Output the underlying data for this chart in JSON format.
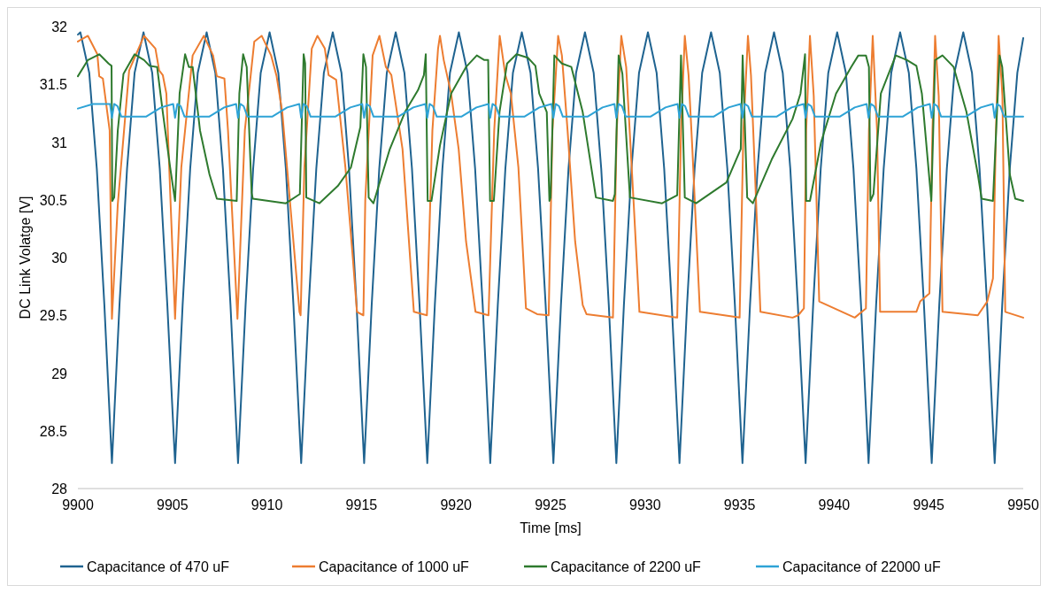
{
  "chart_data": {
    "type": "line",
    "xlabel": "Time [ms]",
    "ylabel": "DC Link Volatge [V]",
    "xlim": [
      9900,
      9950
    ],
    "ylim": [
      28,
      32
    ],
    "xticks": [
      9900,
      9905,
      9910,
      9915,
      9920,
      9925,
      9930,
      9935,
      9940,
      9945,
      9950
    ],
    "yticks": [
      28,
      {
        "value": 28.5,
        "label": "28.5"
      },
      29,
      {
        "value": 29.5,
        "label": "29.5"
      },
      30,
      {
        "value": 30.5,
        "label": "30.5"
      },
      31,
      {
        "value": 31.5,
        "label": "31.5"
      },
      32
    ],
    "legend": "bottom",
    "grid": false,
    "series": [
      {
        "name": "Capacitance of 470 uF",
        "color": "#1f6390",
        "x": [
          9900.0,
          9900.13,
          9900.6,
          9901.0,
          9901.4,
          9901.8,
          9902.2,
          9902.6,
          9903.0,
          9903.47,
          9903.93,
          9904.33,
          9904.73,
          9905.14,
          9905.54,
          9905.94,
          9906.34,
          9906.81,
          9907.27,
          9907.67,
          9908.07,
          9908.47,
          9908.87,
          9909.27,
          9909.67,
          9910.14,
          9910.6,
          9911.0,
          9911.4,
          9911.81,
          9912.21,
          9912.61,
          9913.01,
          9913.48,
          9913.94,
          9914.34,
          9914.74,
          9915.14,
          9915.54,
          9915.94,
          9916.34,
          9916.81,
          9917.27,
          9917.67,
          9918.07,
          9918.48,
          9918.88,
          9919.28,
          9919.68,
          9920.15,
          9920.61,
          9921.01,
          9921.41,
          9921.81,
          9922.21,
          9922.61,
          9923.01,
          9923.48,
          9923.94,
          9924.34,
          9924.74,
          9925.15,
          9925.55,
          9925.95,
          9926.35,
          9926.82,
          9927.28,
          9927.68,
          9928.08,
          9928.48,
          9928.88,
          9929.28,
          9929.68,
          9930.15,
          9930.61,
          9931.01,
          9931.41,
          9931.82,
          9932.22,
          9932.62,
          9933.02,
          9933.49,
          9933.95,
          9934.35,
          9934.75,
          9935.15,
          9935.55,
          9935.95,
          9936.35,
          9936.82,
          9937.28,
          9937.68,
          9938.08,
          9938.49,
          9938.89,
          9939.29,
          9939.69,
          9940.16,
          9940.62,
          9941.02,
          9941.42,
          9941.82,
          9942.22,
          9942.62,
          9943.02,
          9943.49,
          9943.95,
          9944.35,
          9944.75,
          9945.16,
          9945.56,
          9945.96,
          9946.36,
          9946.83,
          9947.29,
          9947.69,
          9948.09,
          9948.49,
          9948.89,
          9949.29,
          9949.69,
          9950.0
        ],
        "values": [
          31.93,
          31.95,
          31.6,
          30.77,
          29.59,
          28.22,
          29.59,
          30.77,
          31.6,
          31.95,
          31.6,
          30.77,
          29.59,
          28.22,
          29.59,
          30.77,
          31.6,
          31.95,
          31.6,
          30.77,
          29.59,
          28.22,
          29.59,
          30.77,
          31.6,
          31.95,
          31.6,
          30.77,
          29.59,
          28.22,
          29.59,
          30.77,
          31.6,
          31.95,
          31.6,
          30.77,
          29.59,
          28.22,
          29.59,
          30.77,
          31.6,
          31.95,
          31.6,
          30.77,
          29.59,
          28.22,
          29.59,
          30.77,
          31.6,
          31.95,
          31.6,
          30.77,
          29.59,
          28.22,
          29.59,
          30.77,
          31.6,
          31.95,
          31.6,
          30.77,
          29.59,
          28.22,
          29.59,
          30.77,
          31.6,
          31.95,
          31.6,
          30.77,
          29.59,
          28.22,
          29.59,
          30.77,
          31.6,
          31.95,
          31.6,
          30.77,
          29.59,
          28.22,
          29.59,
          30.77,
          31.6,
          31.95,
          31.6,
          30.77,
          29.59,
          28.22,
          29.59,
          30.77,
          31.6,
          31.95,
          31.6,
          30.77,
          29.59,
          28.22,
          29.59,
          30.77,
          31.6,
          31.95,
          31.6,
          30.77,
          29.59,
          28.22,
          29.59,
          30.77,
          31.6,
          31.95,
          31.6,
          30.77,
          29.59,
          28.22,
          29.59,
          30.77,
          31.6,
          31.95,
          31.6,
          30.77,
          29.59,
          28.22,
          29.59,
          30.77,
          31.6,
          31.9
        ]
      },
      {
        "name": "Capacitance of 1000 uF",
        "color": "#ed7d31",
        "x": [
          9900.0,
          9900.53,
          9901.03,
          9901.13,
          9901.32,
          9901.68,
          9901.8,
          9902.11,
          9902.71,
          9903.5,
          9904.1,
          9904.3,
          9904.49,
          9904.68,
          9905.14,
          9905.47,
          9906.07,
          9906.66,
          9907.15,
          9907.35,
          9907.75,
          9907.94,
          9908.44,
          9908.83,
          9909.33,
          9909.72,
          9910.22,
          9910.51,
          9910.81,
          9911.72,
          9911.78,
          9911.98,
          9912.37,
          9912.67,
          9913.06,
          9913.26,
          9913.66,
          9914.15,
          9914.55,
          9914.76,
          9915.1,
          9915.2,
          9915.59,
          9915.95,
          9916.29,
          9916.58,
          9917.17,
          9917.77,
          9918.46,
          9918.75,
          9919.05,
          9919.15,
          9919.35,
          9919.74,
          9920.14,
          9920.53,
          9921.03,
          9921.72,
          9922.02,
          9922.31,
          9922.61,
          9922.9,
          9923.3,
          9923.7,
          9924.29,
          9924.9,
          9925.1,
          9925.4,
          9925.6,
          9925.9,
          9926.3,
          9926.7,
          9926.9,
          9928.3,
          9928.5,
          9928.74,
          9929.0,
          9929.4,
          9929.7,
          9931.7,
          9931.9,
          9932.1,
          9932.3,
          9932.5,
          9932.9,
          9935.0,
          9935.2,
          9935.44,
          9935.6,
          9935.8,
          9936.1,
          9937.8,
          9938.1,
          9938.4,
          9938.52,
          9938.72,
          9938.92,
          9939.21,
          9941.09,
          9941.68,
          9941.84,
          9942.04,
          9942.27,
          9942.43,
          9944.35,
          9944.55,
          9945.04,
          9945.2,
          9945.34,
          9945.53,
          9945.73,
          9947.6,
          9948.1,
          9948.4,
          9948.56,
          9948.7,
          9948.9,
          9949.05,
          9950.0
        ],
        "values": [
          31.87,
          31.92,
          31.76,
          31.57,
          31.55,
          31.1,
          29.47,
          30.46,
          31.62,
          31.92,
          31.81,
          31.62,
          31.58,
          31.42,
          29.47,
          30.78,
          31.75,
          31.92,
          31.75,
          31.57,
          31.55,
          31.1,
          29.47,
          31.1,
          31.87,
          31.92,
          31.75,
          31.57,
          31.26,
          29.53,
          29.5,
          30.78,
          31.81,
          31.92,
          31.81,
          31.58,
          31.54,
          30.78,
          29.98,
          29.53,
          29.5,
          30.5,
          31.75,
          31.92,
          31.65,
          31.58,
          30.94,
          29.53,
          29.5,
          31.1,
          31.81,
          31.92,
          31.71,
          31.42,
          30.94,
          30.14,
          29.53,
          29.5,
          31.1,
          31.92,
          31.58,
          31.42,
          30.78,
          29.56,
          29.51,
          29.5,
          31.1,
          31.92,
          31.75,
          31.1,
          30.14,
          29.59,
          29.51,
          29.48,
          31.1,
          31.92,
          31.65,
          30.46,
          29.53,
          29.48,
          31.1,
          31.92,
          31.58,
          30.94,
          29.53,
          29.48,
          31.1,
          31.92,
          31.58,
          30.78,
          29.53,
          29.48,
          29.5,
          29.56,
          31.1,
          31.92,
          31.4,
          29.62,
          29.48,
          29.56,
          31.1,
          31.92,
          31.1,
          29.53,
          29.53,
          29.62,
          29.69,
          31.1,
          31.92,
          31.4,
          29.53,
          29.5,
          29.62,
          29.82,
          31.1,
          31.92,
          31.4,
          29.53,
          29.48
        ]
      },
      {
        "name": "Capacitance of 2200 uF",
        "color": "#2e7a2e",
        "x": [
          9900.0,
          9900.53,
          9901.13,
          9901.62,
          9901.78,
          9901.82,
          9901.92,
          9902.11,
          9902.41,
          9903.0,
          9903.5,
          9903.79,
          9904.19,
          9904.49,
          9904.88,
          9905.14,
          9905.38,
          9905.67,
          9905.87,
          9906.07,
          9906.46,
          9906.96,
          9907.35,
          9908.4,
          9908.54,
          9908.74,
          9908.93,
          9909.19,
          9909.25,
          9911.0,
          9911.74,
          9911.94,
          9912.02,
          9912.08,
          9912.77,
          9913.75,
          9914.44,
          9914.94,
          9915.1,
          9915.24,
          9915.38,
          9915.63,
          9916.5,
          9917.3,
          9917.99,
          9918.3,
          9918.4,
          9918.5,
          9918.7,
          9919.15,
          9919.74,
          9920.53,
          9921.1,
          9921.5,
          9921.7,
          9921.8,
          9922.0,
          9922.3,
          9922.7,
          9923.2,
          9923.8,
          9924.2,
          9924.4,
          9924.8,
          9924.94,
          9925.0,
          9925.2,
          9925.6,
          9926.1,
          9926.7,
          9927.4,
          9928.3,
          9928.4,
          9928.6,
          9928.8,
          9929.2,
          9930.9,
          9931.7,
          9931.9,
          9932.1,
          9932.7,
          9933.5,
          9934.3,
          9935.06,
          9935.16,
          9935.4,
          9935.7,
          9936.7,
          9937.8,
          9938.22,
          9938.46,
          9938.52,
          9938.72,
          9939.31,
          9940.1,
          9940.9,
          9941.28,
          9941.68,
          9941.84,
          9941.92,
          9942.08,
          9942.47,
          9943.26,
          9943.85,
          9944.35,
          9944.64,
          9945.14,
          9945.34,
          9945.73,
          9946.32,
          9947.0,
          9947.6,
          9947.8,
          9948.4,
          9948.75,
          9948.89,
          9949.29,
          9949.58,
          9950.0
        ],
        "values": [
          31.57,
          31.71,
          31.76,
          31.68,
          31.66,
          30.49,
          30.52,
          31.1,
          31.59,
          31.76,
          31.71,
          31.66,
          31.65,
          31.26,
          30.78,
          30.49,
          31.42,
          31.76,
          31.65,
          31.65,
          31.1,
          30.72,
          30.51,
          30.49,
          31.42,
          31.76,
          31.65,
          30.56,
          30.51,
          30.47,
          30.55,
          31.76,
          31.68,
          30.52,
          30.47,
          30.62,
          30.78,
          31.13,
          31.76,
          31.65,
          30.52,
          30.47,
          30.94,
          31.26,
          31.45,
          31.58,
          31.76,
          30.49,
          30.49,
          30.97,
          31.42,
          31.65,
          31.75,
          31.71,
          31.71,
          30.49,
          30.49,
          31.26,
          31.68,
          31.76,
          31.73,
          31.66,
          31.42,
          31.26,
          30.49,
          30.52,
          31.75,
          31.68,
          31.65,
          31.26,
          30.52,
          30.49,
          30.55,
          31.75,
          31.59,
          30.52,
          30.47,
          30.54,
          31.75,
          30.52,
          30.47,
          30.56,
          30.65,
          30.94,
          31.75,
          30.52,
          30.47,
          30.85,
          31.2,
          31.42,
          31.76,
          30.49,
          30.49,
          31.0,
          31.42,
          31.65,
          31.75,
          31.75,
          31.65,
          30.49,
          30.55,
          31.42,
          31.75,
          31.71,
          31.66,
          31.42,
          30.49,
          31.71,
          31.75,
          31.65,
          31.26,
          30.72,
          30.51,
          30.49,
          31.75,
          31.65,
          30.72,
          30.51,
          30.49
        ]
      },
      {
        "name": "Capacitance of 22000 uF",
        "color": "#2ea3d6",
        "x": [
          9900.0,
          9900.8,
          9901.7,
          9901.8,
          9901.92,
          9902.1,
          9902.3,
          9903.6,
          9904.4,
          9905.04,
          9905.14,
          9905.26,
          9905.44,
          9905.64,
          9906.94,
          9907.74,
          9908.37,
          9908.47,
          9908.59,
          9908.77,
          9908.97,
          9910.27,
          9911.07,
          9911.71,
          9911.81,
          9911.93,
          9912.11,
          9912.31,
          9913.61,
          9914.41,
          9915.04,
          9915.14,
          9915.26,
          9915.44,
          9915.64,
          9916.94,
          9917.74,
          9918.38,
          9918.48,
          9918.6,
          9918.78,
          9918.98,
          9920.28,
          9921.08,
          9921.71,
          9921.81,
          9921.93,
          9922.11,
          9922.31,
          9923.61,
          9924.41,
          9925.05,
          9925.15,
          9925.27,
          9925.45,
          9925.65,
          9926.95,
          9927.75,
          9928.38,
          9928.48,
          9928.6,
          9928.78,
          9928.98,
          9930.28,
          9931.08,
          9931.72,
          9931.82,
          9931.94,
          9932.12,
          9932.32,
          9933.62,
          9934.42,
          9935.05,
          9935.15,
          9935.27,
          9935.45,
          9935.65,
          9936.95,
          9937.75,
          9938.39,
          9938.49,
          9938.61,
          9938.79,
          9938.99,
          9940.29,
          9941.09,
          9941.72,
          9941.82,
          9941.94,
          9942.12,
          9942.32,
          9943.62,
          9944.42,
          9945.06,
          9945.16,
          9945.28,
          9945.46,
          9945.66,
          9946.96,
          9947.76,
          9948.39,
          9948.49,
          9948.61,
          9948.79,
          9948.99,
          9950.0
        ],
        "values": [
          31.29,
          31.33,
          31.33,
          31.21,
          31.33,
          31.31,
          31.22,
          31.22,
          31.3,
          31.33,
          31.21,
          31.33,
          31.31,
          31.22,
          31.22,
          31.3,
          31.33,
          31.21,
          31.33,
          31.31,
          31.22,
          31.22,
          31.3,
          31.33,
          31.21,
          31.33,
          31.31,
          31.22,
          31.22,
          31.3,
          31.33,
          31.21,
          31.33,
          31.31,
          31.22,
          31.22,
          31.3,
          31.33,
          31.21,
          31.33,
          31.31,
          31.22,
          31.22,
          31.3,
          31.33,
          31.21,
          31.33,
          31.31,
          31.22,
          31.22,
          31.3,
          31.33,
          31.21,
          31.33,
          31.31,
          31.22,
          31.22,
          31.3,
          31.33,
          31.21,
          31.33,
          31.31,
          31.22,
          31.22,
          31.3,
          31.33,
          31.21,
          31.33,
          31.31,
          31.22,
          31.22,
          31.3,
          31.33,
          31.21,
          31.33,
          31.31,
          31.22,
          31.22,
          31.3,
          31.33,
          31.21,
          31.33,
          31.31,
          31.22,
          31.22,
          31.3,
          31.33,
          31.21,
          31.33,
          31.31,
          31.22,
          31.22,
          31.3,
          31.33,
          31.21,
          31.33,
          31.31,
          31.22,
          31.22,
          31.3,
          31.33,
          31.21,
          31.33,
          31.31,
          31.22,
          31.22
        ]
      }
    ]
  }
}
